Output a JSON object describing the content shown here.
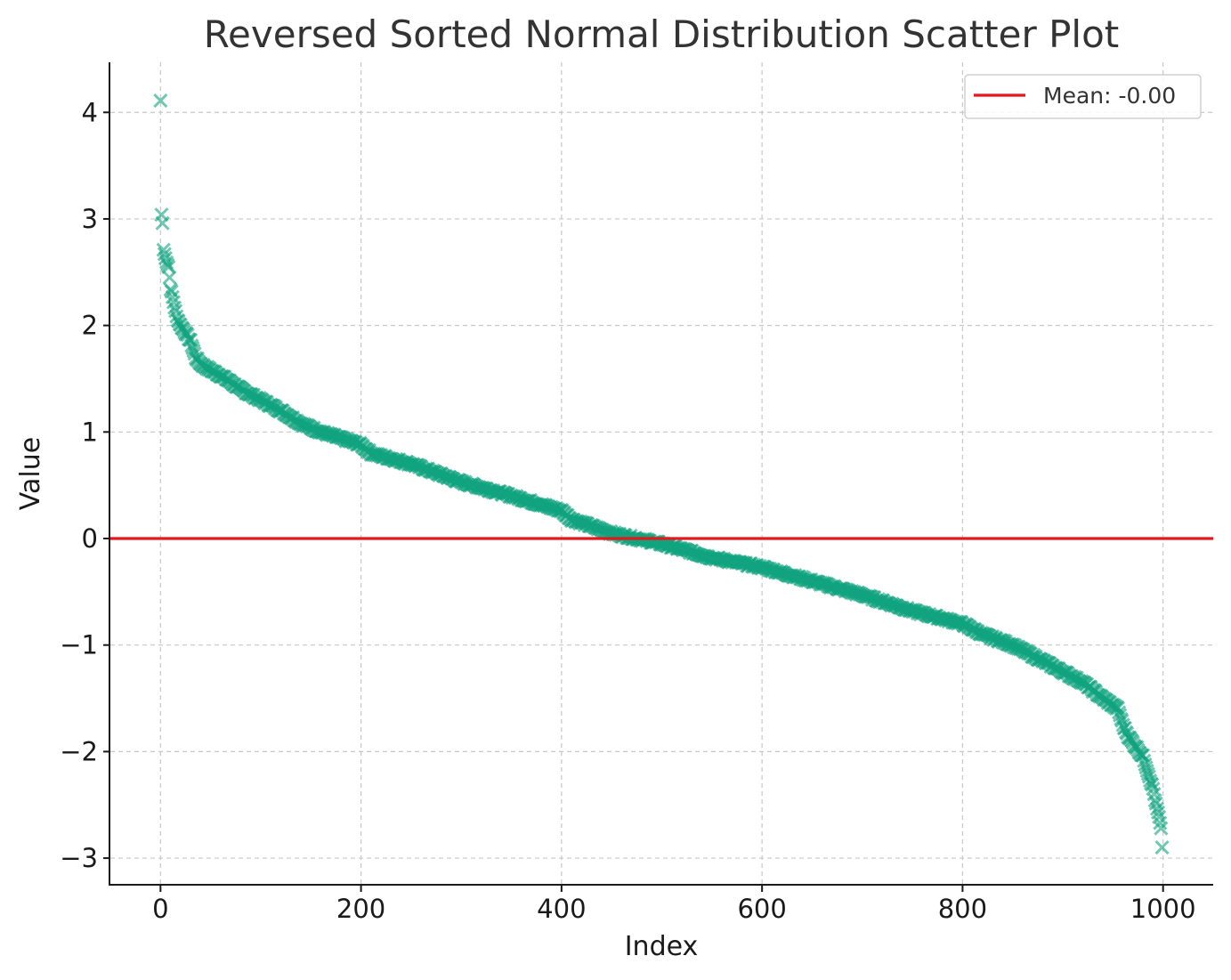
{
  "chart_data": {
    "type": "scatter",
    "title": "Reversed Sorted Normal Distribution Scatter Plot",
    "xlabel": "Index",
    "ylabel": "Value",
    "xlim": [
      -50,
      1050
    ],
    "ylim": [
      -3.25,
      4.47
    ],
    "xticks": [
      0,
      200,
      400,
      600,
      800,
      1000
    ],
    "xtick_labels": [
      "0",
      "200",
      "400",
      "600",
      "800",
      "1000"
    ],
    "yticks": [
      -3,
      -2,
      -1,
      0,
      1,
      2,
      3,
      4
    ],
    "ytick_labels": [
      "−3",
      "−2",
      "−1",
      "0",
      "1",
      "2",
      "3",
      "4"
    ],
    "grid": true,
    "legend": {
      "placement": "upper-right",
      "entries": [
        "Mean: -0.00"
      ]
    },
    "series": [
      {
        "marker": "x",
        "color": "#11a37f",
        "alpha": 0.6,
        "n_points": 1000,
        "key_points": [
          [
            0,
            4.11
          ],
          [
            1,
            3.04
          ],
          [
            2,
            2.96
          ],
          [
            3,
            2.71
          ],
          [
            5,
            2.63
          ],
          [
            8,
            2.55
          ],
          [
            10,
            2.35
          ],
          [
            13,
            2.22
          ],
          [
            16,
            2.08
          ],
          [
            20,
            2.0
          ],
          [
            25,
            1.93
          ],
          [
            30,
            1.85
          ],
          [
            35,
            1.7
          ],
          [
            40,
            1.64
          ],
          [
            50,
            1.58
          ],
          [
            60,
            1.53
          ],
          [
            70,
            1.47
          ],
          [
            80,
            1.4
          ],
          [
            100,
            1.3
          ],
          [
            120,
            1.2
          ],
          [
            140,
            1.08
          ],
          [
            160,
            1.0
          ],
          [
            200,
            0.88
          ],
          [
            210,
            0.8
          ],
          [
            250,
            0.7
          ],
          [
            300,
            0.53
          ],
          [
            350,
            0.4
          ],
          [
            400,
            0.26
          ],
          [
            410,
            0.18
          ],
          [
            450,
            0.05
          ],
          [
            500,
            -0.05
          ],
          [
            550,
            -0.18
          ],
          [
            600,
            -0.27
          ],
          [
            650,
            -0.4
          ],
          [
            700,
            -0.53
          ],
          [
            750,
            -0.68
          ],
          [
            800,
            -0.8
          ],
          [
            820,
            -0.9
          ],
          [
            850,
            -1.0
          ],
          [
            880,
            -1.15
          ],
          [
            900,
            -1.25
          ],
          [
            920,
            -1.35
          ],
          [
            940,
            -1.5
          ],
          [
            955,
            -1.6
          ],
          [
            960,
            -1.75
          ],
          [
            965,
            -1.85
          ],
          [
            970,
            -1.92
          ],
          [
            975,
            -1.98
          ],
          [
            980,
            -2.05
          ],
          [
            985,
            -2.2
          ],
          [
            990,
            -2.35
          ],
          [
            993,
            -2.5
          ],
          [
            996,
            -2.62
          ],
          [
            998,
            -2.72
          ],
          [
            999,
            -2.9
          ]
        ]
      }
    ],
    "mean_line": {
      "value": 0.0,
      "color": "#e8151b"
    }
  }
}
